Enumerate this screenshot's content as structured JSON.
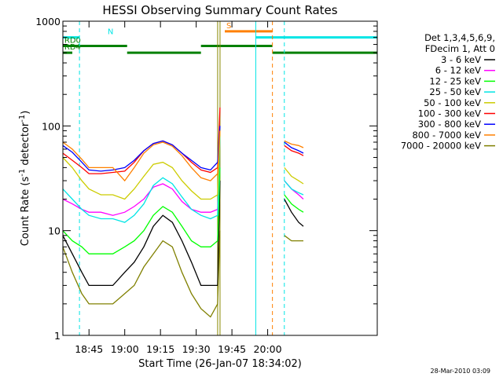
{
  "chart_data": {
    "type": "line",
    "title": "HESSI Observing Summary Count Rates",
    "xlabel": "Start Time (26-Jan-07 18:34:02)",
    "ylabel": "Count Rate (s⁻¹ detector⁻¹)",
    "ylabel_main": "Count Rate (s",
    "ylabel_sup1": "-1",
    "ylabel_mid": " detector",
    "ylabel_sup2": "-1",
    "ylabel_end": ")",
    "y_scale": "log",
    "ylim": [
      1,
      1000
    ],
    "xlim": [
      "18:34:02",
      "20:46:00"
    ],
    "x_ticks": [
      "18:45",
      "19:00",
      "19:15",
      "19:30",
      "19:45",
      "20:00"
    ],
    "y_ticks": [
      "1",
      "10",
      "100",
      "1000"
    ],
    "legend_header": [
      "Det 1,3,4,5,6,9,",
      "FDecim 1, Att 0"
    ],
    "legend_position": "right",
    "footer": "28-Mar-2010 03:09",
    "flags": [
      {
        "label": "N",
        "color": "#00e5e5",
        "y": 700,
        "segments": [
          [
            "18:34",
            "18:41"
          ],
          [
            "19:55",
            "20:46"
          ]
        ]
      },
      {
        "label": "S",
        "color": "#ff8000",
        "y": 800,
        "segments": [
          [
            "19:42",
            "20:02"
          ]
        ]
      },
      {
        "label": "RD0",
        "color": "#008000",
        "y": 580,
        "segments": [
          [
            "18:34",
            "19:01"
          ],
          [
            "19:32",
            "20:02"
          ]
        ]
      },
      {
        "label": "RD4",
        "color": "#008000",
        "y": 500,
        "segments": [
          [
            "18:34",
            "18:38"
          ],
          [
            "19:01",
            "19:32"
          ],
          [
            "20:02",
            "20:46"
          ]
        ]
      }
    ],
    "vlines": [
      {
        "time": "18:41",
        "color": "#00e5e5",
        "dash": true
      },
      {
        "time": "19:39",
        "color": "#888800",
        "dash": false
      },
      {
        "time": "19:40",
        "color": "#888800",
        "dash": false
      },
      {
        "time": "19:55",
        "color": "#00e5e5",
        "dash": false
      },
      {
        "time": "20:02",
        "color": "#ff8000",
        "dash": true
      },
      {
        "time": "20:07",
        "color": "#00e5e5",
        "dash": true
      }
    ],
    "x": [
      "18:34",
      "18:38",
      "18:42",
      "18:45",
      "18:50",
      "18:55",
      "19:00",
      "19:04",
      "19:08",
      "19:12",
      "19:16",
      "19:20",
      "19:24",
      "19:28",
      "19:32",
      "19:36",
      "19:39",
      "19:40",
      "20:07",
      "20:10",
      "20:13",
      "20:15"
    ],
    "series": [
      {
        "name": "3 - 6 keV",
        "color": "#000000",
        "values": [
          9,
          6,
          4,
          3,
          3,
          3,
          4,
          5,
          7,
          11,
          14,
          12,
          8,
          5,
          3,
          3,
          3,
          30,
          20,
          15,
          12,
          11
        ]
      },
      {
        "name": "6 - 12 keV",
        "color": "#ff00ff",
        "values": [
          20,
          18,
          16,
          15,
          15,
          14,
          15,
          17,
          20,
          26,
          28,
          25,
          19,
          16,
          15,
          15,
          16,
          40,
          30,
          25,
          22,
          20
        ]
      },
      {
        "name": "12 - 25 keV",
        "color": "#00ff00",
        "values": [
          10,
          8,
          7,
          6,
          6,
          6,
          7,
          8,
          10,
          14,
          17,
          15,
          11,
          8,
          7,
          7,
          8,
          40,
          22,
          18,
          16,
          15
        ]
      },
      {
        "name": "25 - 50 keV",
        "color": "#00e5e5",
        "values": [
          25,
          20,
          16,
          14,
          13,
          13,
          12,
          14,
          18,
          27,
          32,
          28,
          21,
          16,
          14,
          13,
          14,
          80,
          30,
          25,
          23,
          22
        ]
      },
      {
        "name": "50 - 100 keV",
        "color": "#cccc00",
        "values": [
          50,
          40,
          30,
          25,
          22,
          22,
          20,
          25,
          33,
          43,
          45,
          40,
          30,
          24,
          20,
          20,
          22,
          90,
          40,
          33,
          30,
          28
        ]
      },
      {
        "name": "100 - 300 keV",
        "color": "#ff0000",
        "values": [
          55,
          47,
          40,
          35,
          35,
          36,
          37,
          45,
          58,
          68,
          72,
          66,
          55,
          45,
          38,
          36,
          40,
          150,
          65,
          58,
          55,
          52
        ]
      },
      {
        "name": "300 - 800 keV",
        "color": "#0000ff",
        "values": [
          65,
          56,
          45,
          38,
          37,
          38,
          40,
          47,
          58,
          68,
          72,
          66,
          55,
          47,
          40,
          38,
          45,
          100,
          70,
          62,
          58,
          55
        ]
      },
      {
        "name": "800 - 7000 keV",
        "color": "#ff8000",
        "values": [
          70,
          60,
          48,
          40,
          40,
          40,
          30,
          40,
          55,
          66,
          70,
          64,
          52,
          40,
          32,
          30,
          35,
          90,
          72,
          67,
          65,
          62
        ]
      },
      {
        "name": "7000 - 20000 keV",
        "color": "#808000",
        "values": [
          7,
          4,
          2.5,
          2,
          2,
          2,
          2.5,
          3,
          4.5,
          6,
          8,
          7,
          4,
          2.5,
          1.8,
          1.5,
          2,
          10,
          9,
          8,
          8,
          8
        ]
      }
    ]
  }
}
